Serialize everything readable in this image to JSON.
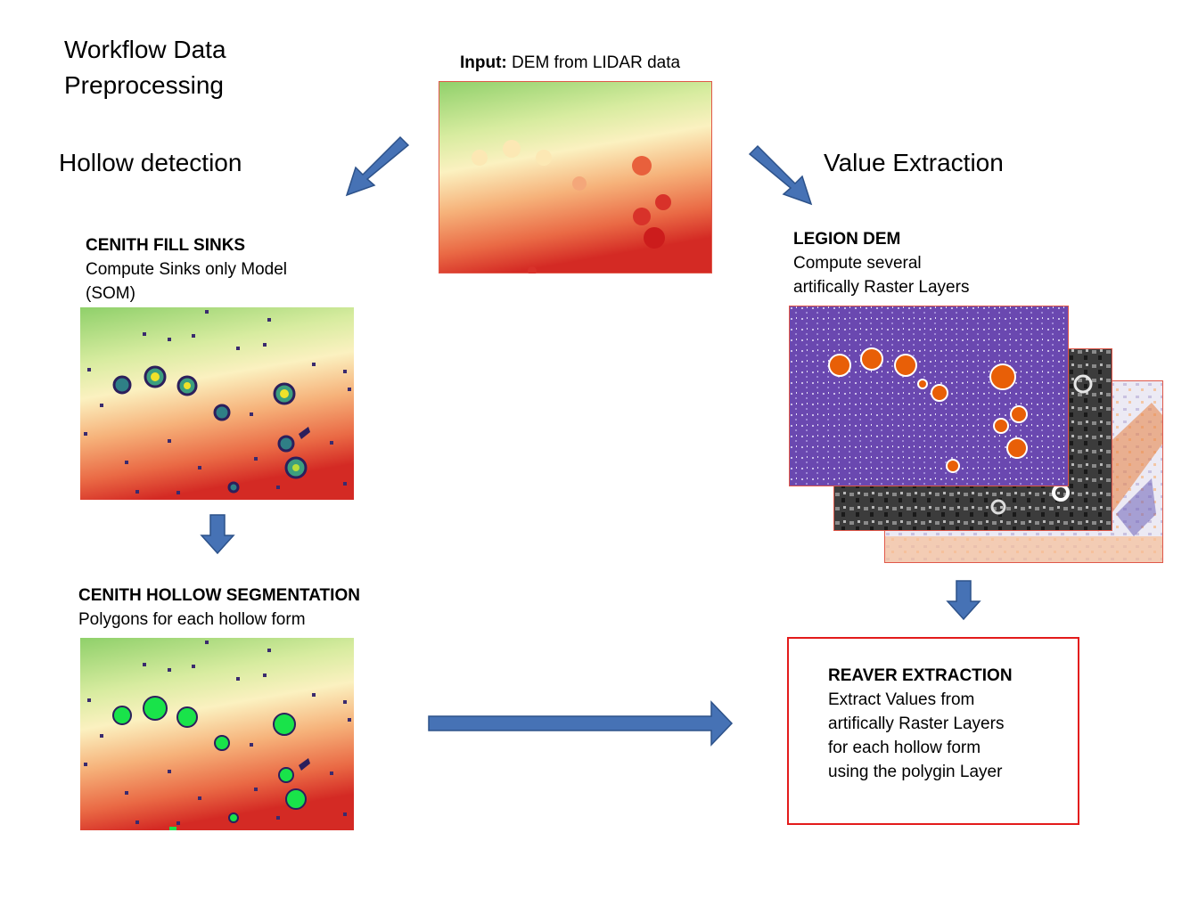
{
  "title": {
    "line1": "Workflow Data",
    "line2": "Preprocessing"
  },
  "input": {
    "label_bold": "Input:",
    "label_rest": " DEM from LIDAR data"
  },
  "left": {
    "heading": "Hollow detection",
    "step1": {
      "name": "CENITH FILL SINKS",
      "lines": [
        "Compute Sinks only Model",
        "(SOM)"
      ]
    },
    "step2": {
      "name": "CENITH HOLLOW SEGMENTATION",
      "lines": [
        "Polygons for each hollow form"
      ]
    }
  },
  "right": {
    "heading": "Value Extraction",
    "step1": {
      "name": "LEGION DEM",
      "lines": [
        "Compute several",
        "artifically Raster Layers"
      ]
    },
    "step2": {
      "name": "REAVER EXTRACTION",
      "lines": [
        "Extract Values from",
        "artifically Raster Layers",
        "for each hollow form",
        "using the polygin Layer"
      ]
    }
  },
  "colors": {
    "arrow": "#4672b5",
    "arrow_edge": "#2d528a",
    "box_border": "#e31b1b",
    "accent_green": "#19e34a",
    "accent_orange": "#e85f07",
    "purple": "#6a48b0"
  }
}
